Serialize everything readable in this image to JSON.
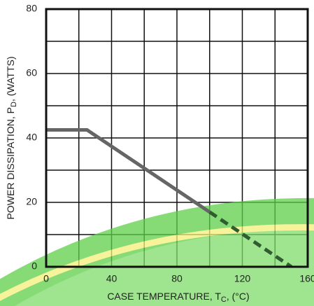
{
  "chart_data": {
    "type": "line",
    "x_label": [
      "CASE TEMPERATURE, T",
      "C",
      ", (°C)"
    ],
    "y_label": [
      "POWER DISSIPATION, P",
      "D",
      ", (WATTS)"
    ],
    "xlim": [
      0,
      160
    ],
    "ylim": [
      0,
      80
    ],
    "xticks": [
      0,
      40,
      80,
      120,
      160
    ],
    "yticks": [
      0,
      20,
      40,
      60,
      80
    ],
    "x_minor_grid": [
      20,
      60,
      100,
      140
    ],
    "y_minor_grid": [
      10,
      30,
      50,
      70
    ],
    "grid": true,
    "series": [
      {
        "color": "#666666",
        "dashed": false,
        "x": [
          0,
          25,
          100
        ],
        "values": [
          42.5,
          42.5,
          17
        ]
      },
      {
        "color": "#2f5d2f",
        "dashed": true,
        "x": [
          100,
          150
        ],
        "values": [
          17,
          0
        ]
      }
    ]
  }
}
